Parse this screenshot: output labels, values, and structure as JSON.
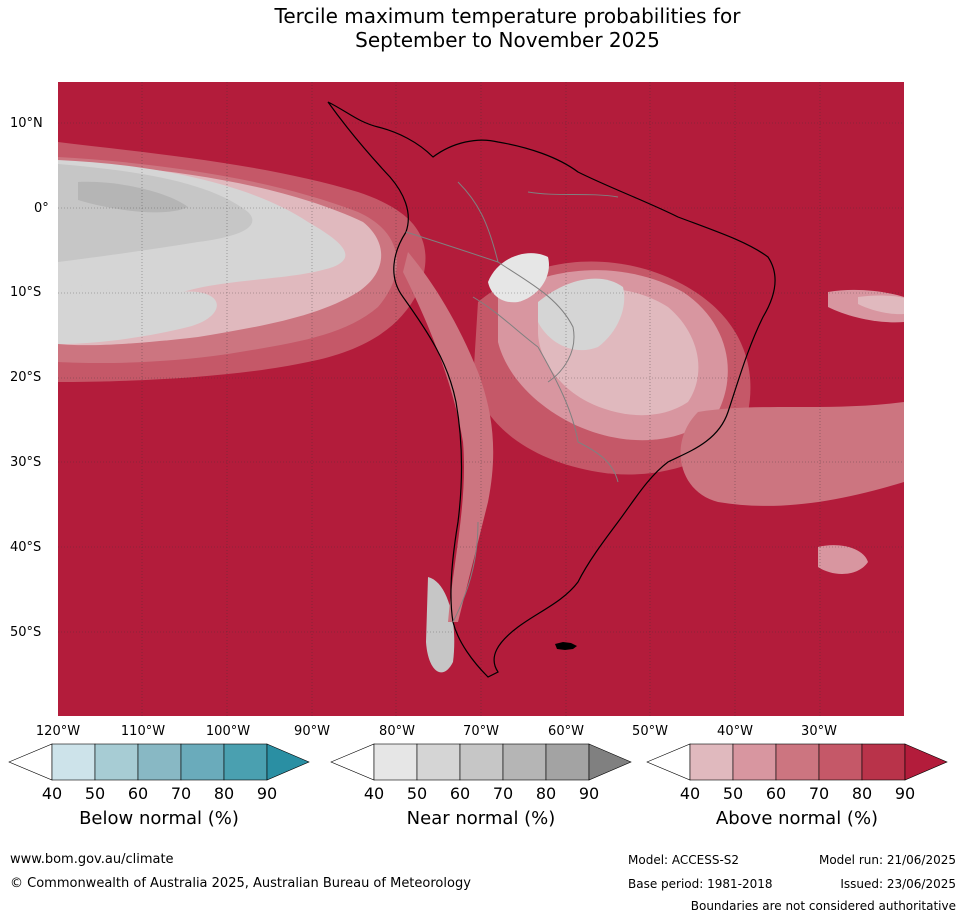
{
  "title_line1": "Tercile maximum temperature probabilities for",
  "title_line2": "September to November 2025",
  "lat_labels": [
    "10°N",
    "0°",
    "10°S",
    "20°S",
    "30°S",
    "40°S",
    "50°S"
  ],
  "lon_labels": [
    "120°W",
    "110°W",
    "100°W",
    "90°W",
    "80°W",
    "70°W",
    "60°W",
    "50°W",
    "40°W",
    "30°W"
  ],
  "colorbars": {
    "below": {
      "title": "Below normal (%)",
      "ticks": [
        "40",
        "50",
        "60",
        "70",
        "80",
        "90"
      ],
      "colors": [
        "#ffffff",
        "#cde3ea",
        "#a7ccd4",
        "#88b8c4",
        "#6aabbb",
        "#4aa0b0",
        "#2a8fa3"
      ]
    },
    "near": {
      "title": "Near normal (%)",
      "ticks": [
        "40",
        "50",
        "60",
        "70",
        "80",
        "90"
      ],
      "colors": [
        "#ffffff",
        "#e6e6e6",
        "#d5d5d5",
        "#c6c6c6",
        "#b5b5b5",
        "#a3a3a3",
        "#808080"
      ]
    },
    "above": {
      "title": "Above normal (%)",
      "ticks": [
        "40",
        "50",
        "60",
        "70",
        "80",
        "90"
      ],
      "colors": [
        "#ffffff",
        "#e0b9be",
        "#d896a0",
        "#cc7580",
        "#c55868",
        "#b9334a",
        "#b31c3b"
      ]
    }
  },
  "footer": {
    "url": "www.bom.gov.au/climate",
    "copyright": "© Commonwealth of Australia 2025, Australian Bureau of Meteorology",
    "model": "Model: ACCESS-S2",
    "base_period": "Base period: 1981-2018",
    "model_run": "Model run: 21/06/2025",
    "issued": "Issued: 23/06/2025",
    "disclaimer": "Boundaries are not considered authoritative"
  },
  "map_colors": {
    "above_90": "#b31c3b",
    "above_80": "#b9334a",
    "above_70": "#c55868",
    "above_60": "#cc7580",
    "above_50": "#d896a0",
    "above_40": "#e0b9be",
    "near_50": "#e6e6e6",
    "near_60": "#d5d5d5",
    "near_70": "#c6c6c6",
    "near_80": "#b5b5b5",
    "land_outline": "#000000",
    "borders": "#808080"
  }
}
